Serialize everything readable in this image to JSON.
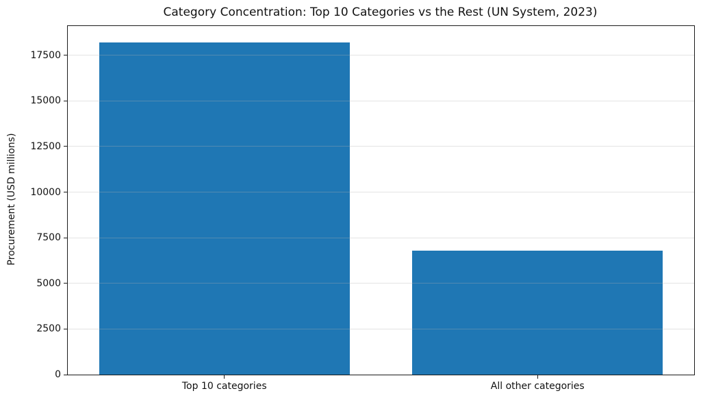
{
  "chart_data": {
    "type": "bar",
    "title": "Category Concentration: Top 10 Categories vs the Rest (UN System, 2023)",
    "xlabel": "",
    "ylabel": "Procurement (USD millions)",
    "categories": [
      "Top 10 categories",
      "All other categories"
    ],
    "values": [
      18200,
      6800
    ],
    "yticks": [
      0,
      2500,
      5000,
      7500,
      10000,
      12500,
      15000,
      17500
    ],
    "ylim": [
      0,
      19100
    ],
    "bar_width_fraction": 0.8,
    "bar_color": "#1f77b4",
    "grid": "horizontal",
    "grid_color": "rgba(176,176,176,0.35)",
    "axis_color": "#1a1a1a",
    "text_color": "#111111",
    "legend": "none",
    "background": "#ffffff"
  }
}
